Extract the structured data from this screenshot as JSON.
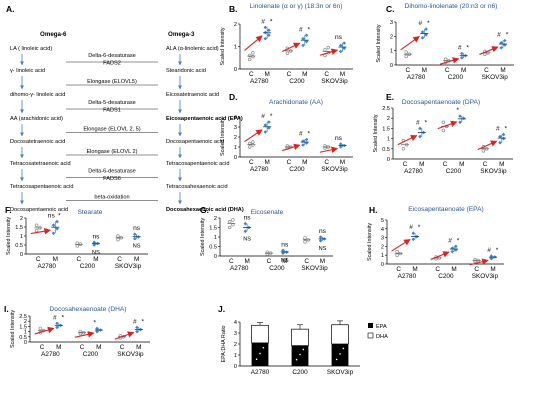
{
  "colors": {
    "control": "#8c8c8c",
    "treated": "#3f86c8",
    "arrow": "#e02020",
    "title": "#2f5597",
    "eline": "#4a7fc0"
  },
  "panel_a": {
    "label": "A.",
    "omega6_header": "Omega-6",
    "omega3_header": "Omega-3",
    "omega6": [
      "LA ( linoleic acid)",
      "γ- linoleic acid",
      "dihomo-γ- linoleic acid",
      "AA (arachidonic acid)",
      "Docosatetraenoic acid",
      "Tetracosatetraenoic acid",
      "Tetracosapentaenoic acid",
      "Docosapentaenoic acid"
    ],
    "omega3": [
      "ALA (α-linolenic acid)",
      "Stearidonic acid",
      "Eicosatetraenoic acid",
      "Eicosapentaenoic acid (EPA)",
      "Docosapentaenoic acid",
      "Tetracosapentaenoic acid",
      "Tetracosahexaenoic acid",
      "Docosahexaenoic acid (DHA)"
    ],
    "enzymes": [
      [
        "Delta-6-desaturase",
        "FADS2"
      ],
      [
        "Elongase (ELOVL5)"
      ],
      [
        "Delta-5-desaturase",
        "FADS1"
      ],
      [
        "Elongase (ELOVL 2, 5)"
      ],
      [
        "Elongase (ELOVL 2)"
      ],
      [
        "Delta-6-desaturase",
        "FADS6"
      ],
      [
        "beta-oxidation"
      ]
    ]
  },
  "chart_data": [
    {
      "label": "B.",
      "type": "scatter",
      "title": "Linolenate (α or γ) (18:3n or 6n)",
      "ylabel": "Scaled Intensity",
      "ylim": [
        0,
        2
      ],
      "yticks": [
        "0",
        "1",
        "2"
      ],
      "xticks": [
        "C",
        "M",
        "C",
        "M",
        "C",
        "M"
      ],
      "groups": [
        "A2780",
        "C200",
        "SKOV3ip"
      ],
      "series": [
        {
          "group": "A2780",
          "control": [
            0.42,
            0.55,
            0.6,
            0.72
          ],
          "treated": [
            1.35,
            1.5,
            1.62,
            1.72,
            1.85
          ],
          "marks": [
            "#",
            "*"
          ],
          "arrow": true
        },
        {
          "group": "C200",
          "control": [
            0.7,
            0.8,
            0.92
          ],
          "treated": [
            1.05,
            1.22,
            1.35,
            1.5
          ],
          "marks": [
            "#",
            "*"
          ],
          "arrow": true
        },
        {
          "group": "SKOV3ip",
          "control": [
            0.6,
            0.72,
            0.85,
            0.95
          ],
          "treated": [
            0.78,
            0.92,
            1.05,
            1.15
          ],
          "marks": [
            "ns"
          ],
          "arrow": true
        }
      ]
    },
    {
      "label": "C.",
      "type": "scatter",
      "title": "Dihomo-linolenate (20:n3 or n6)",
      "ylabel": "Scaled Intensity",
      "ylim": [
        0,
        3
      ],
      "yticks": [
        "0",
        "1",
        "2",
        "3"
      ],
      "xticks": [
        "C",
        "M",
        "C",
        "M",
        "C",
        "M"
      ],
      "groups": [
        "A2780",
        "C200",
        "SKOV3ip"
      ],
      "series": [
        {
          "group": "A2780",
          "control": [
            0.6,
            0.75,
            0.9
          ],
          "treated": [
            1.9,
            2.1,
            2.3,
            2.5
          ],
          "marks": [
            "#",
            "*"
          ],
          "arrow": true
        },
        {
          "group": "C200",
          "control": [
            0.2,
            0.3,
            0.4
          ],
          "treated": [
            0.5,
            0.65,
            0.8
          ],
          "marks": [
            "#",
            "*"
          ],
          "arrow": true
        },
        {
          "group": "SKOV3ip",
          "control": [
            0.75,
            0.85,
            0.95
          ],
          "treated": [
            1.2,
            1.4,
            1.55,
            1.7
          ],
          "marks": [
            "#",
            "*"
          ],
          "arrow": true
        }
      ]
    },
    {
      "label": "D.",
      "type": "scatter",
      "title": "Arachidonate (AA)",
      "ylabel": "Scaled Intensity",
      "ylim": [
        0,
        4
      ],
      "yticks": [
        "0",
        "1",
        "2",
        "3",
        "4"
      ],
      "xticks": [
        "C",
        "M",
        "C",
        "M",
        "C",
        "M"
      ],
      "groups": [
        "A2780",
        "C200",
        "SKOV3ip"
      ],
      "series": [
        {
          "group": "A2780",
          "control": [
            1.0,
            1.2,
            1.35,
            1.5
          ],
          "treated": [
            2.5,
            2.9,
            3.2,
            3.5
          ],
          "marks": [
            "#",
            "*"
          ],
          "arrow": true
        },
        {
          "group": "C200",
          "control": [
            0.9,
            1.0,
            1.1
          ],
          "treated": [
            1.2,
            1.4,
            1.6,
            1.75
          ],
          "marks": [
            "#",
            "*"
          ],
          "arrow": true
        },
        {
          "group": "SKOV3ip",
          "control": [
            0.9,
            1.0,
            1.1
          ],
          "treated": [
            1.0,
            1.15,
            1.3
          ],
          "marks": [
            "ns"
          ],
          "arrow": true
        }
      ]
    },
    {
      "label": "E.",
      "type": "scatter",
      "title": "Docosapentaenoate (DPA)",
      "ylabel": "Scaled Intensity",
      "ylim": [
        0,
        2.5
      ],
      "yticks": [
        "0",
        "0.5",
        "1",
        "1.5",
        "2",
        "2.5"
      ],
      "xticks": [
        "C",
        "M",
        "C",
        "M",
        "C",
        "M"
      ],
      "groups": [
        "A2780",
        "C200",
        "SKOV3ip"
      ],
      "series": [
        {
          "group": "A2780",
          "control": [
            0.5,
            0.7,
            0.9
          ],
          "treated": [
            1.1,
            1.3,
            1.5
          ],
          "marks": [
            "#",
            "*"
          ],
          "arrow": true
        },
        {
          "group": "C200",
          "control": [
            1.4,
            1.6,
            1.8
          ],
          "treated": [
            1.8,
            2.0,
            2.1
          ],
          "marks": [
            "*"
          ],
          "arrow": true
        },
        {
          "group": "SKOV3ip",
          "control": [
            0.4,
            0.5,
            0.6
          ],
          "treated": [
            0.8,
            1.0,
            1.1,
            1.2
          ],
          "marks": [
            "#",
            "*"
          ],
          "arrow": true
        }
      ]
    },
    {
      "label": "F.",
      "type": "scatter",
      "title": "Stearate",
      "ylabel": "Scaled Intensity",
      "ylim": [
        0,
        2
      ],
      "yticks": [
        "0",
        "0.5",
        "1",
        "1.5",
        "2"
      ],
      "xticks": [
        "C",
        "M",
        "C",
        "M",
        "C",
        "M"
      ],
      "groups": [
        "A2780",
        "C200",
        "SKOV3ip"
      ],
      "series": [
        {
          "group": "A2780",
          "control": [
            1.3,
            1.45,
            1.6
          ],
          "treated": [
            1.15,
            1.4,
            1.6,
            1.8
          ],
          "marks": [
            "ns",
            "*"
          ],
          "arrow": true
        },
        {
          "group": "C200",
          "control": [
            0.45,
            0.55,
            0.6
          ],
          "treated": [
            0.5,
            0.58,
            0.65
          ],
          "marks": [
            "ns",
            "NS"
          ],
          "arrow": false
        },
        {
          "group": "SKOV3ip",
          "control": [
            0.8,
            0.9,
            1.0
          ],
          "treated": [
            0.85,
            0.95,
            1.1
          ],
          "marks": [
            "ns",
            "NS"
          ],
          "arrow": false
        }
      ]
    },
    {
      "label": "G.",
      "type": "scatter",
      "title": "Eicosenate",
      "ylabel": "Scaled Intensity",
      "ylim": [
        0,
        2
      ],
      "yticks": [
        "0",
        "0.5",
        "1",
        "1.5",
        "2"
      ],
      "xticks": [
        "C",
        "M",
        "C",
        "M",
        "C",
        "M"
      ],
      "groups": [
        "A2780",
        "C200",
        "SKOV3ip"
      ],
      "series": [
        {
          "group": "A2780",
          "control": [
            1.5,
            1.65,
            1.8,
            1.9
          ],
          "treated": [
            1.3,
            1.5,
            1.7
          ],
          "marks": [
            "ns",
            "NS"
          ],
          "arrow": false
        },
        {
          "group": "C200",
          "control": [
            0.1,
            0.15,
            0.2
          ],
          "treated": [
            0.15,
            0.2,
            0.3
          ],
          "marks": [
            "ns",
            "NS"
          ],
          "arrow": false
        },
        {
          "group": "SKOV3ip",
          "control": [
            0.75,
            0.85,
            0.95
          ],
          "treated": [
            0.8,
            0.9,
            1.0
          ],
          "marks": [
            "ns",
            "NS"
          ],
          "arrow": false
        }
      ]
    },
    {
      "label": "H.",
      "type": "scatter",
      "title": "Eicosapentaenoate (EPA)",
      "ylabel": "Scaled Intensity",
      "ylim": [
        0,
        5
      ],
      "yticks": [
        "0",
        "1",
        "2",
        "3",
        "4",
        "5"
      ],
      "xticks": [
        "C",
        "M",
        "C",
        "M",
        "C",
        "M"
      ],
      "groups": [
        "A2780",
        "C200",
        "SKOV3ip"
      ],
      "series": [
        {
          "group": "A2780",
          "control": [
            1.0,
            1.2,
            1.4
          ],
          "treated": [
            2.8,
            3.1,
            3.5
          ],
          "marks": [
            "#",
            "*"
          ],
          "arrow": true
        },
        {
          "group": "C200",
          "control": [
            0.6,
            0.7,
            0.8
          ],
          "treated": [
            1.4,
            1.6,
            1.8,
            2.0
          ],
          "marks": [
            "#",
            "*"
          ],
          "arrow": true
        },
        {
          "group": "SKOV3ip",
          "control": [
            0.3,
            0.4,
            0.5
          ],
          "treated": [
            0.6,
            0.8,
            0.9
          ],
          "marks": [
            "#",
            "*"
          ],
          "arrow": true
        }
      ]
    },
    {
      "label": "I.",
      "type": "scatter",
      "title": "Docosahexaenoate (DHA)",
      "ylabel": "Scaled Intensity",
      "ylim": [
        0,
        2.5
      ],
      "yticks": [
        "0",
        "0.5",
        "1",
        "1.5",
        "2",
        "2.5"
      ],
      "xticks": [
        "C",
        "M",
        "C",
        "M",
        "C",
        "M"
      ],
      "groups": [
        "A2780",
        "C200",
        "SKOV3ip"
      ],
      "series": [
        {
          "group": "A2780",
          "control": [
            0.9,
            1.1,
            1.3
          ],
          "treated": [
            1.4,
            1.6,
            1.8
          ],
          "marks": [
            "#",
            "*"
          ],
          "arrow": true
        },
        {
          "group": "C200",
          "control": [
            0.8,
            0.9,
            1.0
          ],
          "treated": [
            1.0,
            1.15,
            1.3
          ],
          "marks": [
            "*"
          ],
          "arrow": true
        },
        {
          "group": "SKOV3ip",
          "control": [
            0.4,
            0.5,
            0.6
          ],
          "treated": [
            1.0,
            1.2,
            1.4
          ],
          "marks": [
            "#",
            "*"
          ],
          "arrow": true
        }
      ]
    },
    {
      "label": "J.",
      "type": "bar",
      "title": "",
      "ylabel": "EPA:DHA Ratio",
      "ylim": [
        0,
        4
      ],
      "yticks": [
        "0",
        "1",
        "2",
        "3",
        "4"
      ],
      "categories": [
        "A2780",
        "C200",
        "SKOV3ip"
      ],
      "legend": [
        "EPA",
        "DHA"
      ],
      "legend_position": "right",
      "series": [
        {
          "name": "EPA",
          "values": [
            2.1,
            1.85,
            2.0
          ]
        },
        {
          "name": "DHA",
          "values": [
            1.6,
            1.5,
            1.75
          ]
        }
      ],
      "errors": [
        0.25,
        0.4,
        0.35
      ]
    }
  ]
}
